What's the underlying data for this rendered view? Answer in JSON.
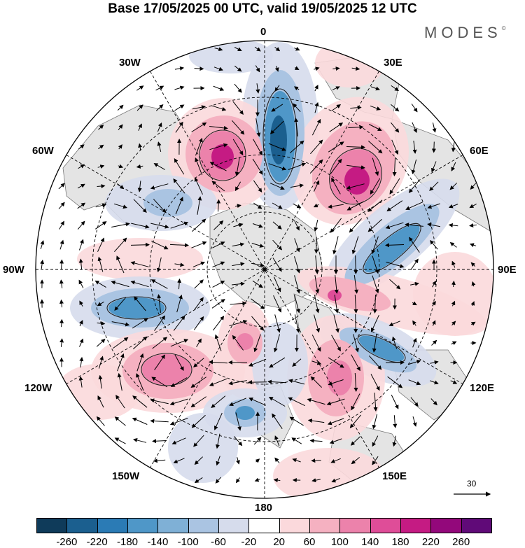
{
  "title": "Base 17/05/2025 00 UTC, valid 19/05/2025 12 UTC",
  "brand": "MODES",
  "brand_mark": "©",
  "longitude_labels": {
    "top": "0",
    "30e": "30E",
    "60e": "60E",
    "90e": "90E",
    "120e": "120E",
    "150e": "150E",
    "bottom": "180",
    "150w": "150W",
    "120w": "120W",
    "90w": "90W",
    "60w": "60W",
    "30w": "30W"
  },
  "reference_vector": "30",
  "colorbar": {
    "ticks": [
      "-260",
      "-220",
      "-180",
      "-140",
      "-100",
      "-60",
      "-20",
      "20",
      "60",
      "100",
      "140",
      "180",
      "220",
      "260"
    ],
    "colors": [
      "#0f3b5a",
      "#1b5f8f",
      "#2b7bb5",
      "#4f97c8",
      "#7fb0d6",
      "#aac4e2",
      "#d6dcec",
      "#ffffff",
      "#fbd9dc",
      "#f5b1c1",
      "#ec82ab",
      "#df4d98",
      "#c51b83",
      "#93087b",
      "#600a78"
    ]
  },
  "map_colors": {
    "land": "#e4e4e4",
    "blue_light": "#d6dcec",
    "blue_mid": "#aac4e2",
    "blue_strong": "#4f97c8",
    "blue_deep": "#1b5f8f",
    "pink_light": "#fbd9dc",
    "pink_mid": "#f5b1c1",
    "pink_strong": "#ec82ab",
    "pink_deep": "#c51b83"
  }
}
